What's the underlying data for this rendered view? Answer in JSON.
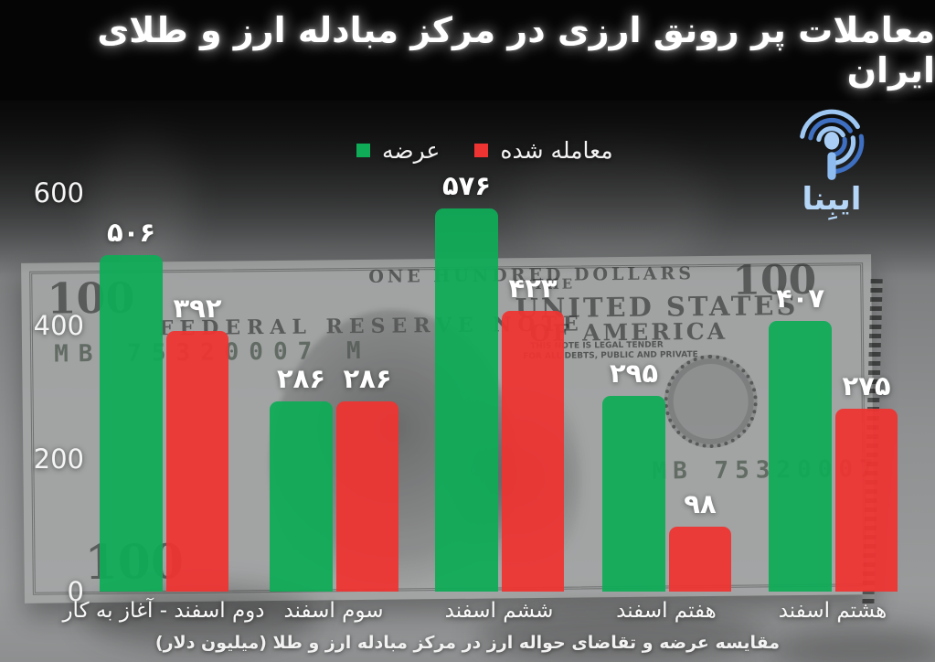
{
  "header": {
    "title": "معاملات پر رونق ارزی در مرکز مبادله ارز و طلای ایران"
  },
  "logo": {
    "text": "ایبِنا"
  },
  "legend": {
    "items": [
      {
        "label": "عرضه",
        "color": "#0fab57"
      },
      {
        "label": "معامله شده",
        "color": "#ee3432"
      }
    ]
  },
  "chart_data": {
    "type": "bar",
    "title": "معاملات پر رونق ارزی در مرکز مبادله ارز و طلای ایران",
    "categories": [
      "دوم اسفند - آغاز به کار",
      "سوم اسفند",
      "ششم اسفند",
      "هفتم اسفند",
      "هشتم اسفند"
    ],
    "series": [
      {
        "name": "عرضه",
        "key": "supply",
        "color": "#0fab57",
        "values": [
          506,
          286,
          576,
          295,
          407
        ],
        "value_labels": [
          "۵۰۶",
          "۲۸۶",
          "۵۷۶",
          "۲۹۵",
          "۴۰۷"
        ]
      },
      {
        "name": "معامله شده",
        "key": "traded",
        "color": "#ee3432",
        "values": [
          392,
          286,
          423,
          98,
          275
        ],
        "value_labels": [
          "۳۹۲",
          "۲۸۶",
          "۴۲۳",
          "۹۸",
          "۲۷۵"
        ]
      }
    ],
    "y_ticks": [
      600,
      400,
      200,
      0
    ],
    "ylim": [
      0,
      600
    ],
    "grid": false,
    "legend_position": "top-center",
    "unit": "میلیون دلار"
  },
  "caption": "مقایسه عرضه و تقاضای حواله ارز در مرکز مبادله ارز و طلا (میلیون دلار)",
  "background_photo": {
    "description": "grayscale photo of a US one hundred dollar bill",
    "texts": {
      "denomination": "100",
      "one_hundred_dollars": "ONE HUNDRED DOLLARS",
      "federal_reserve_note": "FEDERAL RESERVE NOTE",
      "the": "THE",
      "united_states": "UNITED STATES",
      "of_america": "OF AMERICA",
      "legal_tender_1": "THIS NOTE IS LEGAL TENDER",
      "legal_tender_2": "FOR ALL DEBTS, PUBLIC AND PRIVATE",
      "serial": "MB 75320007 M"
    }
  }
}
